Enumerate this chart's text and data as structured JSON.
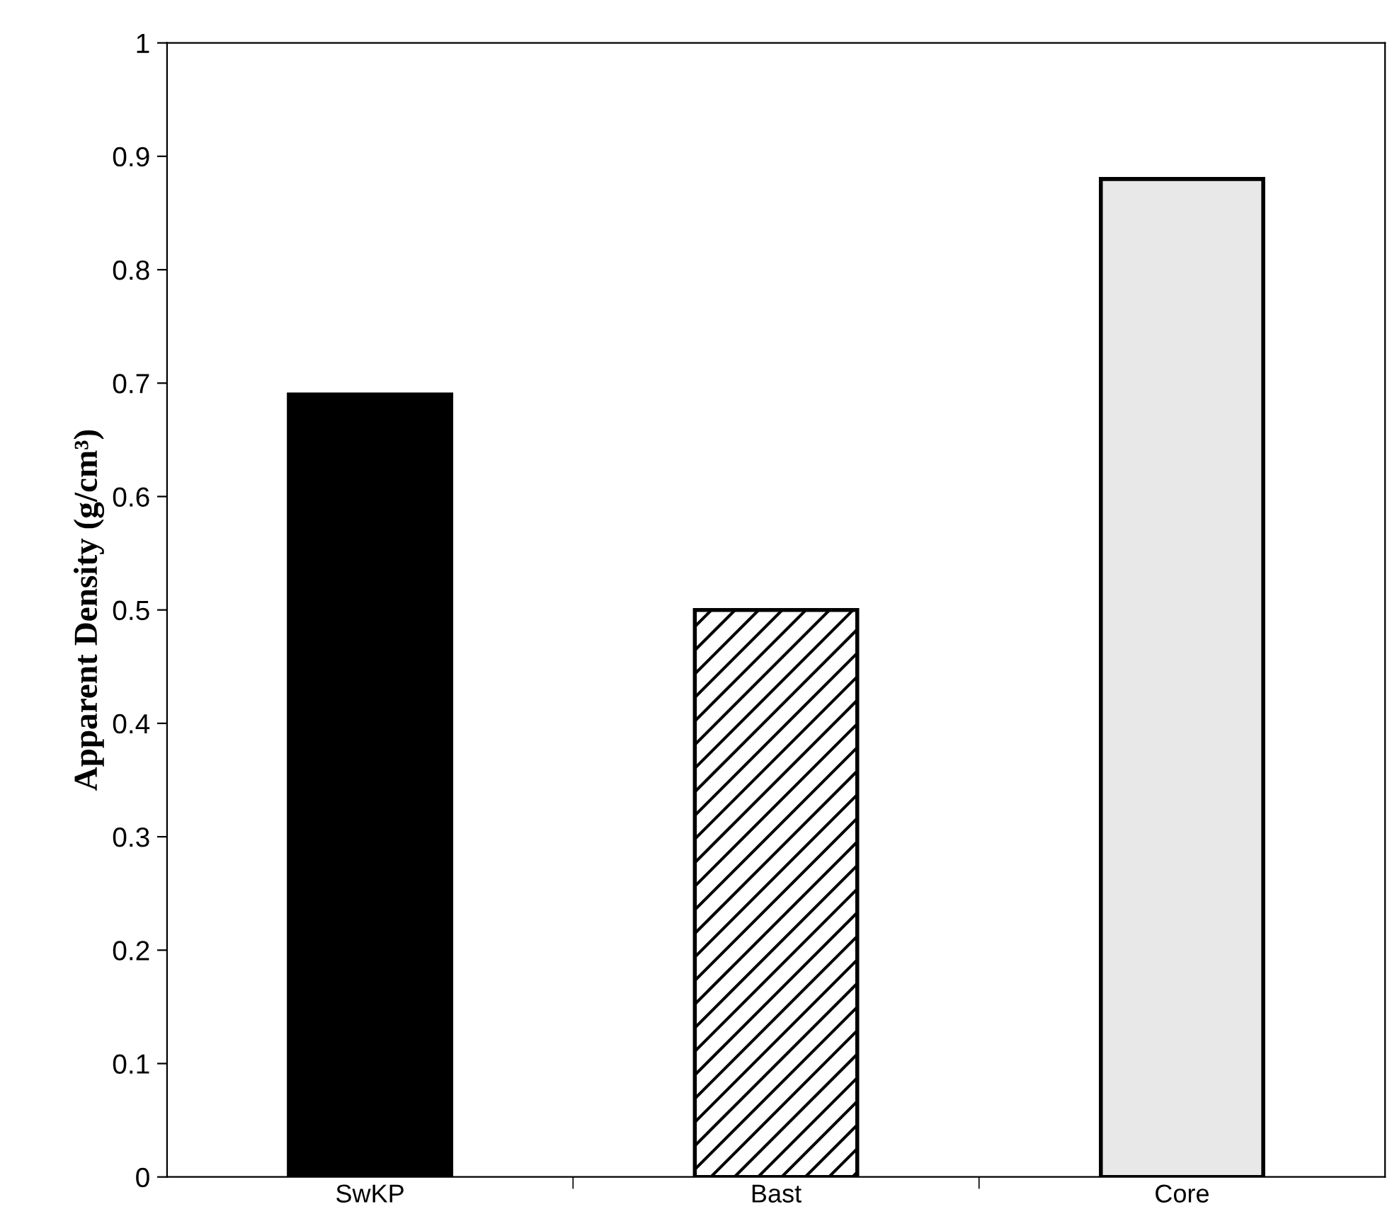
{
  "chart_data": {
    "type": "bar",
    "ylabel": "Apparent Density (g/cm³)",
    "categories": [
      "SwKP",
      "Bast",
      "Core"
    ],
    "values": [
      0.69,
      0.5,
      0.88
    ],
    "colors": [
      "#000000",
      "#000000",
      "#e8e8e8"
    ],
    "ylim": [
      0,
      1
    ],
    "yticks": [
      0,
      0.1,
      0.2,
      0.3,
      0.4,
      0.5,
      0.6,
      0.7,
      0.8,
      0.9,
      1
    ],
    "grid": false,
    "legend": false
  }
}
